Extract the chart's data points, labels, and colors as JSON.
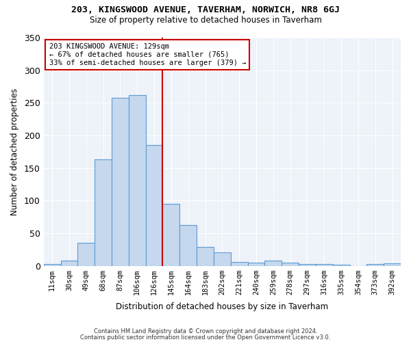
{
  "title": "203, KINGSWOOD AVENUE, TAVERHAM, NORWICH, NR8 6GJ",
  "subtitle": "Size of property relative to detached houses in Taverham",
  "xlabel": "Distribution of detached houses by size in Taverham",
  "ylabel": "Number of detached properties",
  "categories": [
    "11sqm",
    "30sqm",
    "49sqm",
    "68sqm",
    "87sqm",
    "106sqm",
    "126sqm",
    "145sqm",
    "164sqm",
    "183sqm",
    "202sqm",
    "221sqm",
    "240sqm",
    "259sqm",
    "278sqm",
    "297sqm",
    "316sqm",
    "335sqm",
    "354sqm",
    "373sqm",
    "392sqm"
  ],
  "values": [
    3,
    8,
    35,
    163,
    258,
    262,
    185,
    95,
    62,
    29,
    20,
    6,
    5,
    8,
    5,
    3,
    3,
    2,
    0,
    3,
    4
  ],
  "bar_color": "#c5d8ed",
  "bar_edge_color": "#5b9bd5",
  "background_color": "#eef2f9",
  "annotation_line1": "203 KINGSWOOD AVENUE: 129sqm",
  "annotation_line2": "← 67% of detached houses are smaller (765)",
  "annotation_line3": "33% of semi-detached houses are larger (379) →",
  "vline_x_index": 6.5,
  "vline_color": "#cc0000",
  "annotation_box_color": "#ffffff",
  "annotation_box_edge": "#cc0000",
  "ylim": [
    0,
    350
  ],
  "yticks": [
    0,
    50,
    100,
    150,
    200,
    250,
    300,
    350
  ],
  "footer1": "Contains HM Land Registry data © Crown copyright and database right 2024.",
  "footer2": "Contains public sector information licensed under the Open Government Licence v3.0."
}
